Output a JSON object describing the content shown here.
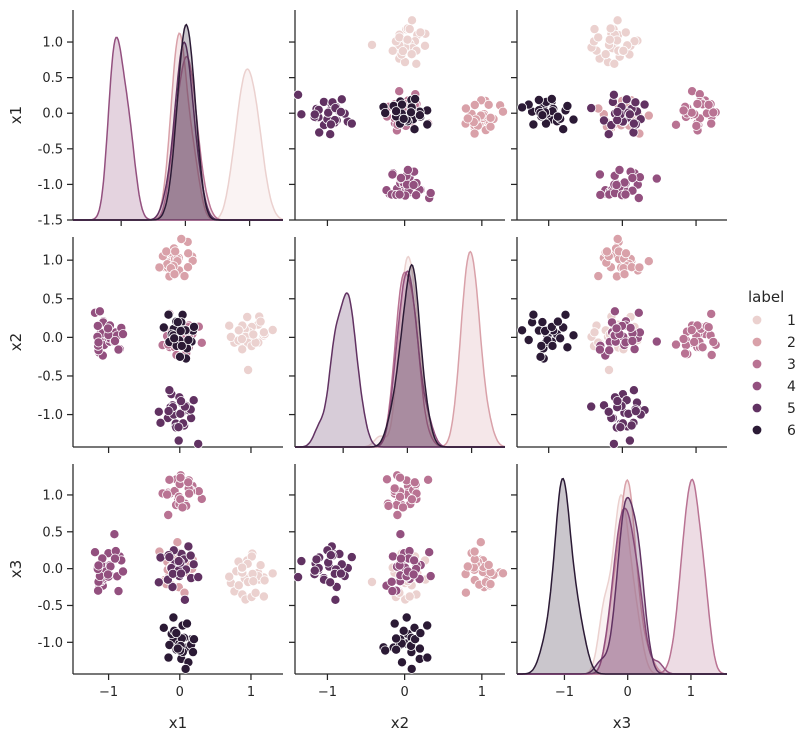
{
  "chart_data": {
    "type": "scatter",
    "variables": [
      "x1",
      "x2",
      "x3"
    ],
    "hue": "label",
    "legend": {
      "title": "label",
      "entries": [
        "1",
        "2",
        "3",
        "4",
        "5",
        "6"
      ],
      "placement": "right"
    },
    "colors": {
      "1": "#ebd1cf",
      "2": "#d9a1a9",
      "3": "#b97393",
      "4": "#93507f",
      "5": "#613262",
      "6": "#2b1a35"
    },
    "axis_ranges": {
      "x1": [
        -1.5,
        1.45
      ],
      "x2": [
        -1.42,
        1.3
      ],
      "x3": [
        -1.43,
        1.42
      ]
    },
    "diag_ranges": {
      "x1": [
        -1.75,
        1.52
      ],
      "x2": [
        -1.75,
        1.52
      ],
      "x3": [
        -1.75,
        1.57
      ]
    },
    "ticks": {
      "x1": [
        "-1.5",
        "-1.0",
        "-0.5",
        "0.0",
        "0.5",
        "1.0"
      ],
      "x2": [
        "-1.0",
        "-0.5",
        "0.0",
        "0.5",
        "1.0"
      ],
      "x3": [
        "-1.0",
        "-0.5",
        "0.0",
        "0.5",
        "1.0"
      ],
      "bottom": [
        "−1",
        "0",
        "1"
      ]
    },
    "clusters": [
      {
        "label": "1",
        "center": {
          "x1": 1.0,
          "x2": 0.0,
          "x3": -0.1
        },
        "spread": 0.15,
        "n": 30
      },
      {
        "label": "2",
        "center": {
          "x1": 0.0,
          "x2": 1.0,
          "x3": 0.0
        },
        "spread": 0.13,
        "n": 30
      },
      {
        "label": "3",
        "center": {
          "x1": 0.0,
          "x2": 0.0,
          "x3": 1.0
        },
        "spread": 0.12,
        "n": 30
      },
      {
        "label": "4",
        "center": {
          "x1": -1.0,
          "x2": 0.0,
          "x3": 0.0
        },
        "spread": 0.15,
        "n": 30
      },
      {
        "label": "5",
        "center": {
          "x1": 0.0,
          "x2": -1.0,
          "x3": 0.0
        },
        "spread": 0.14,
        "n": 30
      },
      {
        "label": "6",
        "center": {
          "x1": 0.0,
          "x2": 0.0,
          "x3": -1.0
        },
        "spread": 0.13,
        "n": 30
      }
    ],
    "grid": false
  }
}
